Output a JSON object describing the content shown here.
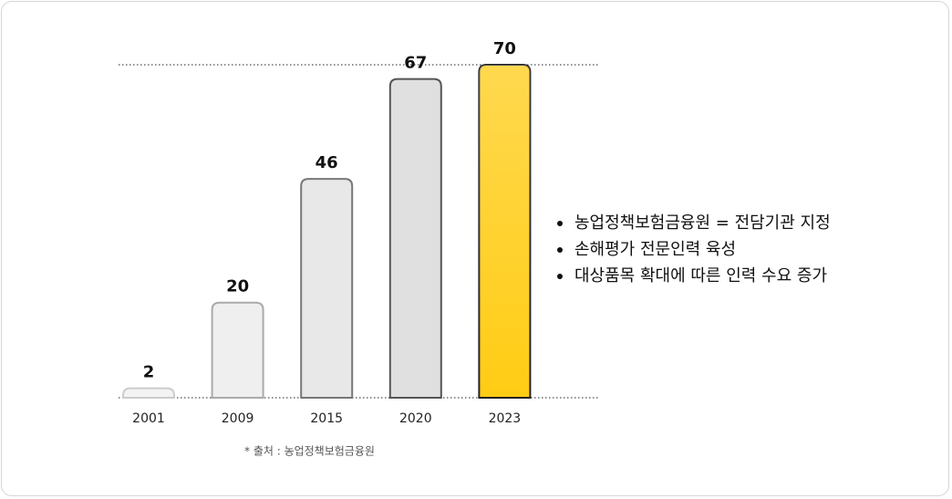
{
  "chart_data": {
    "type": "bar",
    "categories": [
      "2001",
      "2009",
      "2015",
      "2020",
      "2023"
    ],
    "values": [
      2,
      20,
      46,
      67,
      70
    ],
    "colors": [
      "#f3f3f3",
      "#efefef",
      "#e8e8e8",
      "#e0e0e0",
      "#ffcc14"
    ],
    "edge_colors": [
      "#cccccc",
      "#aaaaaa",
      "#777777",
      "#555555",
      "#222222"
    ],
    "ylim": [
      0,
      70
    ],
    "annotations": [
      "농업정책보험금융원 = 전담기관 지정",
      "손해평가 전문인력 육성",
      "대상품목 확대에 따른 인력 수요 증가"
    ],
    "source": "* 출처 : 농업정책보험금융원"
  }
}
